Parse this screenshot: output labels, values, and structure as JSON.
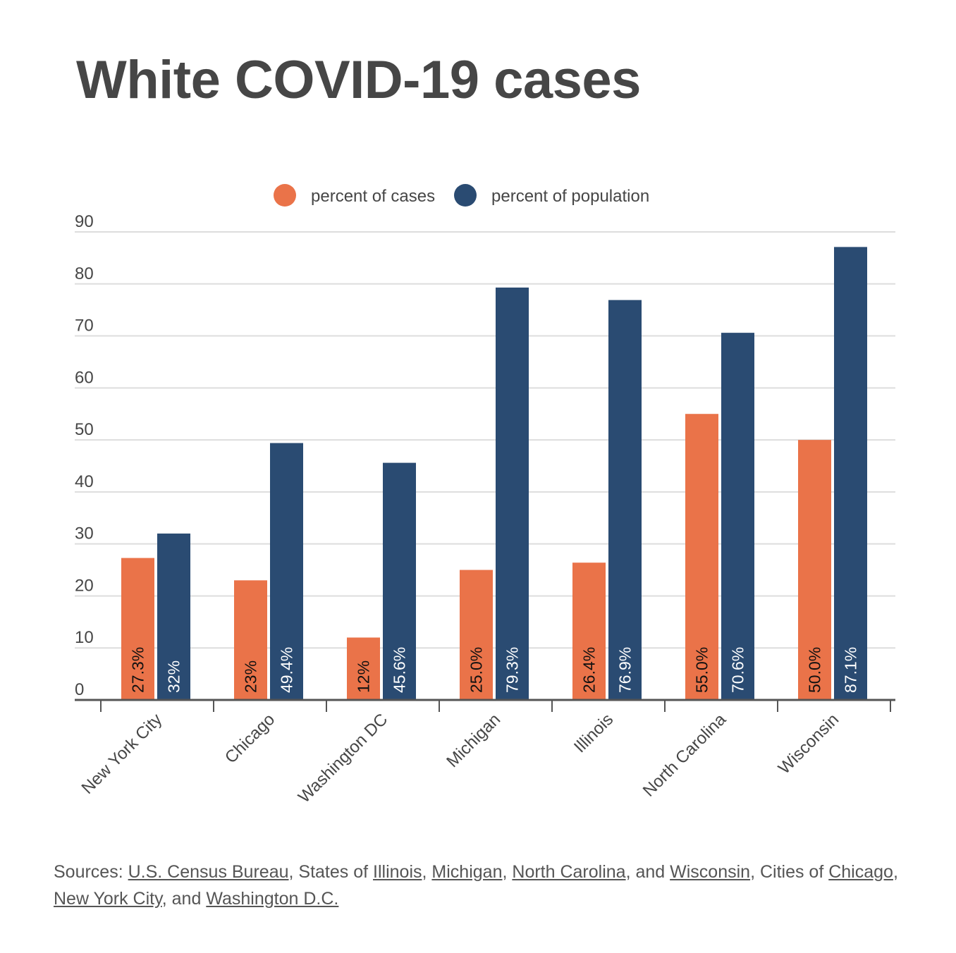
{
  "title": "White COVID-19 cases",
  "colors": {
    "cases": "#ea7349",
    "population": "#2a4b72",
    "text": "#464646",
    "grid": "#dddddd",
    "axis": "#555555"
  },
  "chart_data": {
    "type": "bar",
    "categories": [
      "New York City",
      "Chicago",
      "Washington DC",
      "Michigan",
      "Illinois",
      "North Carolina",
      "Wisconsin"
    ],
    "series": [
      {
        "name": "percent of cases",
        "values": [
          27.3,
          23,
          12,
          25.0,
          26.4,
          55.0,
          50.0
        ],
        "labels": [
          "27.3%",
          "23%",
          "12%",
          "25.0%",
          "26.4%",
          "55.0%",
          "50.0%"
        ]
      },
      {
        "name": "percent of population",
        "values": [
          32,
          49.4,
          45.6,
          79.3,
          76.9,
          70.6,
          87.1
        ],
        "labels": [
          "32%",
          "49.4%",
          "45.6%",
          "79.3%",
          "76.9%",
          "70.6%",
          "87.1%"
        ]
      }
    ],
    "ylim": [
      0,
      90
    ],
    "yticks": [
      "0",
      "10",
      "20",
      "30",
      "40",
      "50",
      "60",
      "70",
      "80",
      "90"
    ],
    "grid": true,
    "legend_position": "top-center"
  },
  "sources": {
    "prefix": "Sources: ",
    "census": "U.S. Census Bureau",
    "states_of": ", States of ",
    "illinois": "Illinois",
    "comma1": ", ",
    "michigan": "Michigan",
    "comma2": ", ",
    "north_carolina": "North Carolina",
    "and1": ", and ",
    "wisconsin": "Wisconsin",
    "cities_of": ", Cities of ",
    "chicago": "Chicago",
    "comma3": ", ",
    "new_york_city": "New York City",
    "and2": ", and ",
    "washington": "Washington D.C."
  }
}
